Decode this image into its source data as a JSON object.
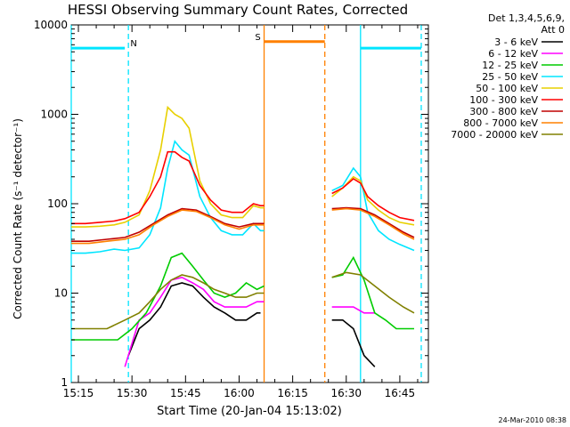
{
  "chart_data": {
    "type": "line",
    "title": "HESSI Observing Summary Count Rates, Corrected",
    "xlabel": "Start Time (20-Jan-04 15:13:02)",
    "ylabel": "Corrected Count Rate (s⁻¹ detector⁻¹)",
    "y_scale": "log",
    "ylim": [
      1,
      10000
    ],
    "xlim": [
      "15:13",
      "16:53"
    ],
    "x_ticks": [
      "15:15",
      "15:30",
      "15:45",
      "16:00",
      "16:15",
      "16:30",
      "16:45"
    ],
    "y_ticks": [
      "1",
      "10",
      "100",
      "1000",
      "10000"
    ],
    "footer": "24-Mar-2010 08:38",
    "legend_header": [
      "Det 1,3,4,5,6,9,",
      "Att 0"
    ],
    "legend_position": "right",
    "series": [
      {
        "name": "3 - 6 keV",
        "color": "#000000",
        "x": [
          "15:29",
          "15:32",
          "15:35",
          "15:38",
          "15:41",
          "15:44",
          "15:47",
          "15:50",
          "15:53",
          "15:56",
          "15:59",
          "16:02",
          "16:05",
          "16:06"
        ],
        "y": [
          2,
          4,
          5,
          7,
          12,
          13,
          12,
          9,
          7,
          6,
          5,
          5,
          6,
          6
        ]
      },
      {
        "name": "6 - 12 keV",
        "color": "#ff00ff",
        "x": [
          "15:28",
          "15:32",
          "15:35",
          "15:38",
          "15:41",
          "15:44",
          "15:47",
          "15:50",
          "15:53",
          "15:56",
          "15:59",
          "16:02",
          "16:05",
          "16:07"
        ],
        "y": [
          1.5,
          5,
          6,
          9,
          14,
          15,
          13,
          11,
          8,
          7,
          7,
          7,
          8,
          8
        ]
      },
      {
        "name": "12 - 25 keV",
        "color": "#00cc00",
        "x": [
          "15:13",
          "15:20",
          "15:26",
          "15:30",
          "15:34",
          "15:38",
          "15:41",
          "15:44",
          "15:47",
          "15:50",
          "15:53",
          "15:56",
          "15:59",
          "16:02",
          "16:05",
          "16:07"
        ],
        "y": [
          3,
          3,
          3,
          4,
          6,
          12,
          25,
          28,
          20,
          14,
          10,
          9,
          10,
          13,
          11,
          12
        ]
      },
      {
        "name": "25 - 50 keV",
        "color": "#00e5ff",
        "x": [
          "15:13",
          "15:17",
          "15:21",
          "15:25",
          "15:28",
          "15:32",
          "15:35",
          "15:38",
          "15:40",
          "15:42",
          "15:44",
          "15:46",
          "15:49",
          "15:52",
          "15:55",
          "15:58",
          "16:01",
          "16:04",
          "16:06",
          "16:07"
        ],
        "y": [
          28,
          28,
          29,
          31,
          30,
          32,
          45,
          90,
          250,
          500,
          400,
          350,
          120,
          70,
          50,
          45,
          45,
          60,
          50,
          50
        ]
      },
      {
        "name": "50 - 100 keV",
        "color": "#e8d000",
        "x": [
          "15:13",
          "15:17",
          "15:21",
          "15:25",
          "15:28",
          "15:32",
          "15:35",
          "15:38",
          "15:40",
          "15:42",
          "15:44",
          "15:46",
          "15:49",
          "15:52",
          "15:55",
          "15:58",
          "16:01",
          "16:04",
          "16:06",
          "16:07"
        ],
        "y": [
          55,
          55,
          56,
          58,
          62,
          75,
          140,
          400,
          1200,
          1000,
          900,
          700,
          180,
          100,
          75,
          70,
          70,
          95,
          90,
          90
        ]
      },
      {
        "name": "100 - 300 keV",
        "color": "#ff0000",
        "x": [
          "15:13",
          "15:17",
          "15:21",
          "15:25",
          "15:28",
          "15:32",
          "15:35",
          "15:38",
          "15:40",
          "15:42",
          "15:44",
          "15:46",
          "15:49",
          "15:52",
          "15:55",
          "15:58",
          "16:01",
          "16:04",
          "16:06",
          "16:07"
        ],
        "y": [
          60,
          60,
          62,
          64,
          68,
          80,
          120,
          200,
          380,
          380,
          330,
          300,
          160,
          110,
          85,
          80,
          80,
          100,
          95,
          95
        ]
      },
      {
        "name": "300 - 800 keV",
        "color": "#c00000",
        "x": [
          "15:13",
          "15:18",
          "15:23",
          "15:28",
          "15:32",
          "15:36",
          "15:40",
          "15:44",
          "15:48",
          "15:52",
          "15:56",
          "16:00",
          "16:04",
          "16:07"
        ],
        "y": [
          38,
          38,
          40,
          42,
          48,
          60,
          75,
          88,
          85,
          72,
          60,
          55,
          60,
          60
        ]
      },
      {
        "name": "800 - 7000 keV",
        "color": "#ff8000",
        "x": [
          "15:13",
          "15:18",
          "15:23",
          "15:28",
          "15:32",
          "15:36",
          "15:40",
          "15:44",
          "15:48",
          "15:52",
          "15:56",
          "16:00",
          "16:04",
          "16:07"
        ],
        "y": [
          36,
          36,
          38,
          40,
          45,
          58,
          72,
          85,
          82,
          70,
          58,
          52,
          58,
          58
        ]
      },
      {
        "name": "7000 - 20000 keV",
        "color": "#808000",
        "x": [
          "15:13",
          "15:18",
          "15:23",
          "15:28",
          "15:32",
          "15:35",
          "15:38",
          "15:41",
          "15:44",
          "15:47",
          "15:50",
          "15:53",
          "15:56",
          "15:59",
          "16:02",
          "16:05",
          "16:07"
        ],
        "y": [
          4,
          4,
          4,
          5,
          6,
          8,
          11,
          14,
          16,
          15,
          13,
          11,
          10,
          9,
          9,
          10,
          10
        ]
      }
    ],
    "segments_after_gap": [
      {
        "name": "3 - 6 keV",
        "x": [
          "16:26",
          "16:29",
          "16:32",
          "16:35",
          "16:38"
        ],
        "y": [
          5,
          5,
          4,
          2,
          1.5
        ]
      },
      {
        "name": "6 - 12 keV",
        "x": [
          "16:26",
          "16:29",
          "16:32",
          "16:35",
          "16:38"
        ],
        "y": [
          7,
          7,
          7,
          6,
          6
        ]
      },
      {
        "name": "12 - 25 keV",
        "x": [
          "16:26",
          "16:29",
          "16:32",
          "16:35",
          "16:38",
          "16:41",
          "16:44",
          "16:47",
          "16:49"
        ],
        "y": [
          15,
          16,
          25,
          14,
          6,
          5,
          4,
          4,
          4
        ]
      },
      {
        "name": "25 - 50 keV",
        "x": [
          "16:26",
          "16:29",
          "16:32",
          "16:34",
          "16:36",
          "16:39",
          "16:42",
          "16:45",
          "16:49"
        ],
        "y": [
          140,
          160,
          250,
          200,
          80,
          50,
          40,
          35,
          30
        ]
      },
      {
        "name": "50 - 100 keV",
        "x": [
          "16:26",
          "16:29",
          "16:32",
          "16:34",
          "16:36",
          "16:39",
          "16:42",
          "16:45",
          "16:49"
        ],
        "y": [
          120,
          150,
          200,
          180,
          110,
          85,
          70,
          62,
          58
        ]
      },
      {
        "name": "100 - 300 keV",
        "x": [
          "16:26",
          "16:29",
          "16:32",
          "16:34",
          "16:36",
          "16:39",
          "16:42",
          "16:45",
          "16:49"
        ],
        "y": [
          130,
          150,
          190,
          170,
          120,
          95,
          80,
          70,
          65
        ]
      },
      {
        "name": "300 - 800 keV",
        "x": [
          "16:26",
          "16:30",
          "16:34",
          "16:38",
          "16:42",
          "16:46",
          "16:49"
        ],
        "y": [
          88,
          90,
          88,
          75,
          60,
          48,
          42
        ]
      },
      {
        "name": "800 - 7000 keV",
        "x": [
          "16:26",
          "16:30",
          "16:34",
          "16:38",
          "16:42",
          "16:46",
          "16:49"
        ],
        "y": [
          85,
          88,
          85,
          72,
          58,
          46,
          40
        ]
      },
      {
        "name": "7000 - 20000 keV",
        "x": [
          "16:26",
          "16:30",
          "16:34",
          "16:38",
          "16:42",
          "16:46",
          "16:49"
        ],
        "y": [
          15,
          17,
          16,
          12,
          9,
          7,
          6
        ]
      }
    ],
    "markers": [
      {
        "label": "N",
        "color": "#00e5ff",
        "x": "15:29",
        "bar": [
          "15:13",
          "15:28"
        ],
        "y": 5500
      },
      {
        "label": "S",
        "color": "#ff8000",
        "x": "16:07",
        "bar": [
          "16:07",
          "16:24"
        ],
        "y": 6500
      },
      {
        "label": "",
        "color": "#00e5ff",
        "x": "16:34",
        "bar": [
          "16:34",
          "16:51"
        ],
        "y": 5500
      }
    ],
    "vlines": [
      {
        "x": "15:13",
        "color": "#00e5ff",
        "style": "solid"
      },
      {
        "x": "15:29",
        "color": "#00e5ff",
        "style": "dashed"
      },
      {
        "x": "16:07",
        "color": "#ff8000",
        "style": "solid"
      },
      {
        "x": "16:24",
        "color": "#ff8000",
        "style": "dashed"
      },
      {
        "x": "16:34",
        "color": "#00e5ff",
        "style": "solid"
      },
      {
        "x": "16:51",
        "color": "#00e5ff",
        "style": "dashed"
      }
    ]
  }
}
